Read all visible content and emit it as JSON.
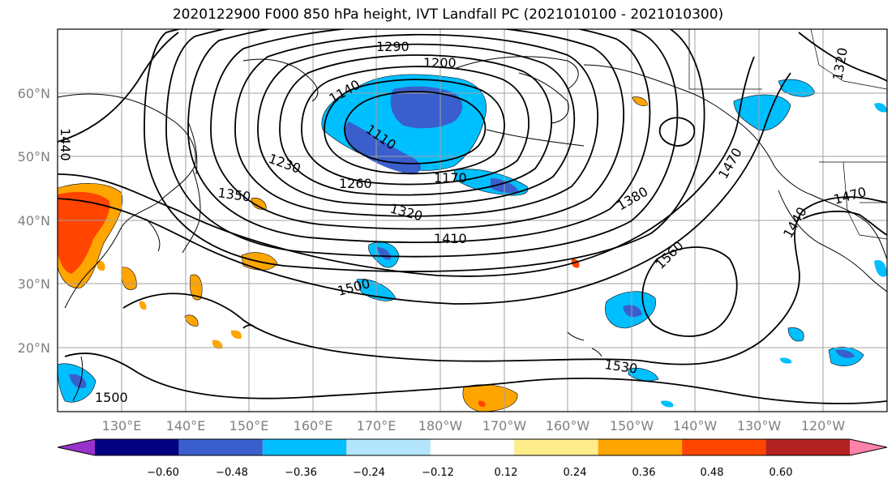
{
  "title": "2020122900 F000 850 hPa height, IVT Landfall PC (2021010100 - 2021010300)",
  "map": {
    "lat_labels": [
      "60°N",
      "50°N",
      "40°N",
      "30°N",
      "20°N"
    ],
    "lon_labels": [
      "130°E",
      "140°E",
      "150°E",
      "160°E",
      "170°E",
      "180°W",
      "170°W",
      "160°W",
      "150°W",
      "140°W",
      "130°W",
      "120°W"
    ],
    "contour_labels": [
      "1290",
      "1200",
      "1140",
      "1110",
      "1170",
      "1230",
      "1260",
      "1320",
      "1350",
      "1380",
      "1410",
      "1440",
      "1440",
      "1470",
      "1470",
      "1500",
      "1500",
      "1530",
      "1560",
      "1320"
    ]
  },
  "colorbar": {
    "colors": [
      "#9932cc",
      "#000080",
      "#3a5fcd",
      "#00bfff",
      "#b3e5fc",
      "#ffffff",
      "#ffec8b",
      "#ffa500",
      "#ff4500",
      "#b22222",
      "#ff82ab"
    ],
    "ticks": [
      "−0.60",
      "−0.48",
      "−0.36",
      "−0.24",
      "−0.12",
      "0.12",
      "0.24",
      "0.36",
      "0.48",
      "0.60"
    ]
  }
}
